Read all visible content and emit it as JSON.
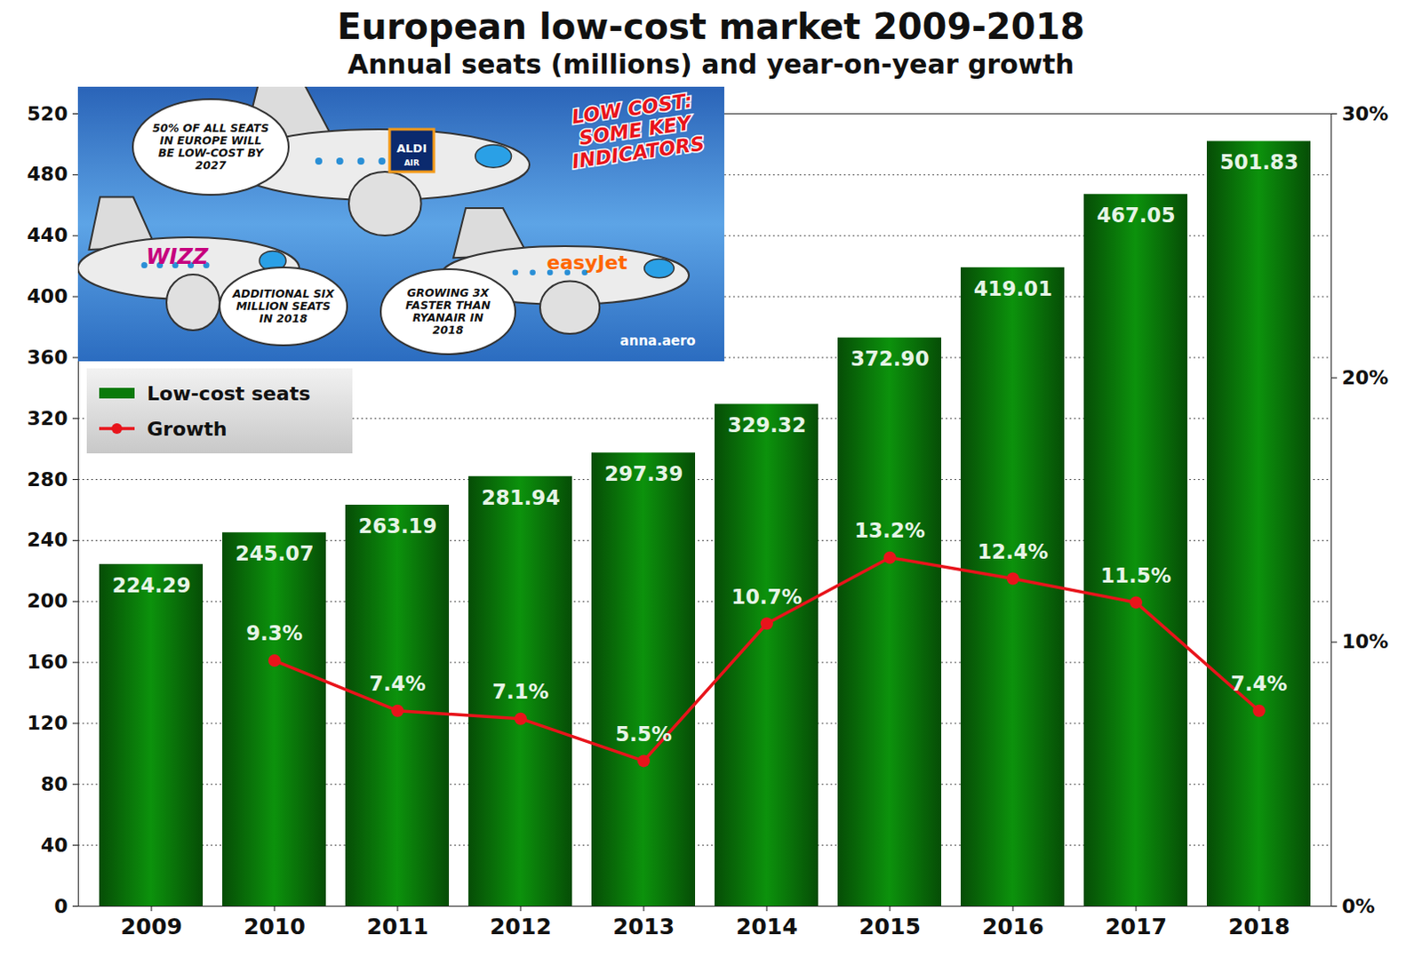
{
  "chart_data": {
    "type": "bar",
    "title": "European low-cost market 2009-2018",
    "subtitle": "Annual seats (millions) and year-on-year growth",
    "categories": [
      "2009",
      "2010",
      "2011",
      "2012",
      "2013",
      "2014",
      "2015",
      "2016",
      "2017",
      "2018"
    ],
    "series": [
      {
        "name": "Low-cost seats",
        "type": "bar",
        "color": "#0a7a0a",
        "values": [
          224.29,
          245.07,
          263.19,
          281.94,
          297.39,
          329.32,
          372.9,
          419.01,
          467.05,
          501.83
        ],
        "value_labels": [
          "224.29",
          "245.07",
          "263.19",
          "281.94",
          "297.39",
          "329.32",
          "372.90",
          "419.01",
          "467.05",
          "501.83"
        ]
      },
      {
        "name": "Growth",
        "type": "line",
        "axis": "y2",
        "color": "#e8141b",
        "marker": "circle",
        "values": [
          null,
          9.3,
          7.4,
          7.1,
          5.5,
          10.7,
          13.2,
          12.4,
          11.5,
          7.4
        ],
        "value_labels": [
          null,
          "9.3%",
          "7.4%",
          "7.1%",
          "5.5%",
          "10.7%",
          "13.2%",
          "12.4%",
          "11.5%",
          "7.4%"
        ]
      }
    ],
    "ylim": [
      0,
      520
    ],
    "yticks": [
      0,
      40,
      80,
      120,
      160,
      200,
      240,
      280,
      320,
      360,
      400,
      440,
      480,
      520
    ],
    "y2lim": [
      0,
      30
    ],
    "y2ticks": [
      {
        "value": 0,
        "label": "0%"
      },
      {
        "value": 10,
        "label": "10%"
      },
      {
        "value": 20,
        "label": "20%"
      },
      {
        "value": 30,
        "label": "30%"
      }
    ],
    "grid": true,
    "data_labels": true,
    "legend": "upper left",
    "annotations": {
      "headline": "LOW COST: SOME KEY INDICATORS",
      "callouts": [
        "50% OF ALL SEATS IN EUROPE WILL BE LOW-COST BY 2027",
        "ADDITIONAL SIX MILLION SEATS IN 2018",
        "GROWING 3X FASTER THAN RYANAIR IN 2018"
      ],
      "airlines": [
        "ALDI AIR",
        "WIZZ",
        "easyJet"
      ],
      "credit": "anna.aero"
    }
  }
}
